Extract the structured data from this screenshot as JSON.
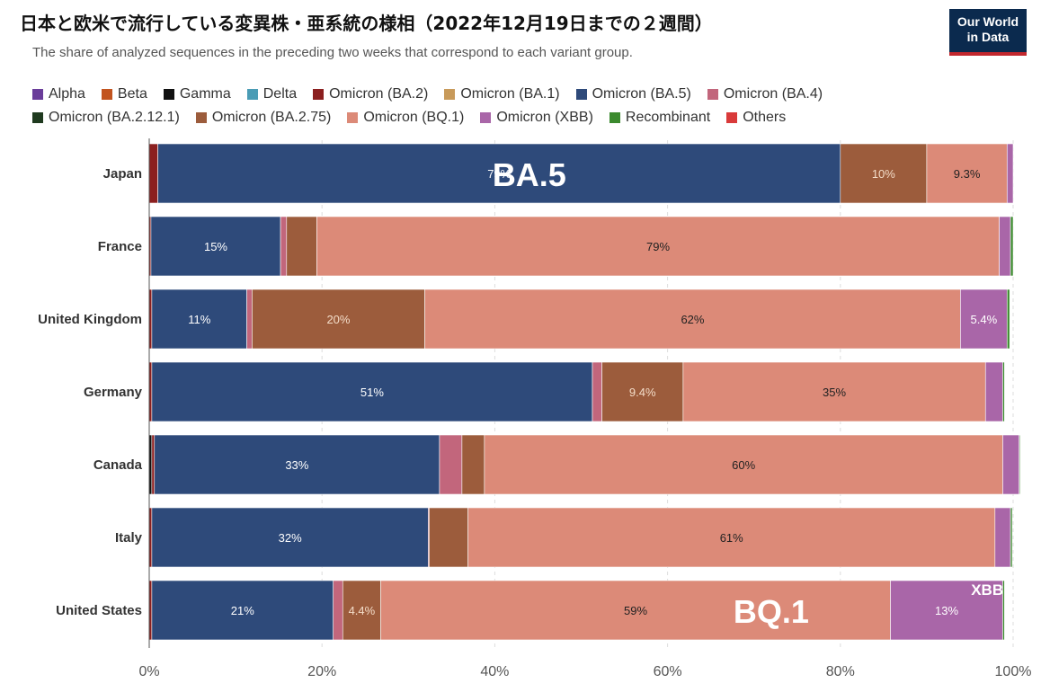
{
  "title": "日本と欧米で流行している変異株・亜系統の様相（2022年12月19日までの２週間）",
  "subtitle": "The share of analyzed sequences in the preceding two weeks that correspond to each variant group.",
  "logo": {
    "line1": "Our World",
    "line2": "in Data"
  },
  "chart_data": {
    "type": "bar",
    "orientation": "horizontal",
    "stacked": true,
    "categories": [
      "Japan",
      "France",
      "United Kingdom",
      "Germany",
      "Canada",
      "Italy",
      "United States"
    ],
    "xlim": [
      0,
      100
    ],
    "x_ticks": [
      "0%",
      "20%",
      "40%",
      "60%",
      "80%",
      "100%"
    ],
    "legend_position": "top",
    "series": [
      {
        "name": "Alpha",
        "color": "#6a3d9a",
        "values": [
          0,
          0,
          0,
          0,
          0,
          0,
          0
        ]
      },
      {
        "name": "Beta",
        "color": "#c2541f",
        "values": [
          0,
          0,
          0,
          0,
          0,
          0,
          0
        ]
      },
      {
        "name": "Gamma",
        "color": "#111111",
        "values": [
          0,
          0,
          0,
          0,
          0.3,
          0,
          0
        ]
      },
      {
        "name": "Delta",
        "color": "#4a9cb5",
        "values": [
          0,
          0,
          0,
          0,
          0,
          0,
          0
        ]
      },
      {
        "name": "Omicron (BA.2)",
        "color": "#8b1f1f",
        "values": [
          1.0,
          0.2,
          0.3,
          0.3,
          0.3,
          0.3,
          0.3
        ]
      },
      {
        "name": "Omicron (BA.1)",
        "color": "#c89a5a",
        "values": [
          0,
          0,
          0,
          0,
          0,
          0,
          0
        ]
      },
      {
        "name": "Omicron (BA.5)",
        "color": "#2e4a7a",
        "values": [
          79,
          15,
          11,
          51,
          33,
          32,
          21
        ]
      },
      {
        "name": "Omicron (BA.4)",
        "color": "#c2667c",
        "values": [
          0,
          0.7,
          0.6,
          1.1,
          2.6,
          0.1,
          1.1
        ]
      },
      {
        "name": "Omicron (BA.2.12.1)",
        "color": "#1f3a1f",
        "values": [
          0,
          0,
          0,
          0,
          0,
          0,
          0
        ]
      },
      {
        "name": "Omicron (BA.2.75)",
        "color": "#9c5c3c",
        "values": [
          10,
          3.5,
          20,
          9.4,
          2.6,
          4.5,
          4.4
        ]
      },
      {
        "name": "Omicron (BQ.1)",
        "color": "#dc8a78",
        "values": [
          9.3,
          79,
          62,
          35,
          60,
          61,
          59
        ]
      },
      {
        "name": "Omicron (XBB)",
        "color": "#a966a8",
        "values": [
          0.7,
          1.3,
          5.4,
          2.0,
          1.9,
          1.8,
          13
        ]
      },
      {
        "name": "Recombinant",
        "color": "#3b8a2e",
        "values": [
          0,
          0.3,
          0.3,
          0.2,
          0.1,
          0.2,
          0.2
        ]
      },
      {
        "name": "Others",
        "color": "#d93a3a",
        "values": [
          0,
          0,
          0,
          0,
          0,
          0,
          0
        ]
      }
    ],
    "data_labels": [
      {
        "category": "Japan",
        "series": "Omicron (BA.5)",
        "text": "79%"
      },
      {
        "category": "Japan",
        "series": "Omicron (BA.2.75)",
        "text": "10%"
      },
      {
        "category": "Japan",
        "series": "Omicron (BQ.1)",
        "text": "9.3%"
      },
      {
        "category": "France",
        "series": "Omicron (BA.5)",
        "text": "15%"
      },
      {
        "category": "France",
        "series": "Omicron (BQ.1)",
        "text": "79%"
      },
      {
        "category": "United Kingdom",
        "series": "Omicron (BA.5)",
        "text": "11%"
      },
      {
        "category": "United Kingdom",
        "series": "Omicron (BA.2.75)",
        "text": "20%"
      },
      {
        "category": "United Kingdom",
        "series": "Omicron (BQ.1)",
        "text": "62%"
      },
      {
        "category": "United Kingdom",
        "series": "Omicron (XBB)",
        "text": "5.4%"
      },
      {
        "category": "Germany",
        "series": "Omicron (BA.5)",
        "text": "51%"
      },
      {
        "category": "Germany",
        "series": "Omicron (BA.2.75)",
        "text": "9.4%"
      },
      {
        "category": "Germany",
        "series": "Omicron (BQ.1)",
        "text": "35%"
      },
      {
        "category": "Canada",
        "series": "Omicron (BA.5)",
        "text": "33%"
      },
      {
        "category": "Canada",
        "series": "Omicron (BQ.1)",
        "text": "60%"
      },
      {
        "category": "Italy",
        "series": "Omicron (BA.5)",
        "text": "32%"
      },
      {
        "category": "Italy",
        "series": "Omicron (BQ.1)",
        "text": "61%"
      },
      {
        "category": "United States",
        "series": "Omicron (BA.5)",
        "text": "21%"
      },
      {
        "category": "United States",
        "series": "Omicron (BA.2.75)",
        "text": "4.4%"
      },
      {
        "category": "United States",
        "series": "Omicron (BQ.1)",
        "text": "59%"
      },
      {
        "category": "United States",
        "series": "Omicron (XBB)",
        "text": "13%"
      }
    ],
    "annotations": [
      {
        "text": "BA.5",
        "category": "Japan",
        "at_value": 44,
        "size": "large"
      },
      {
        "text": "BQ.1",
        "category": "United States",
        "at_value": 72,
        "size": "large"
      },
      {
        "text": "XBB",
        "category": "United States",
        "at_value": 97,
        "size": "small"
      }
    ]
  }
}
